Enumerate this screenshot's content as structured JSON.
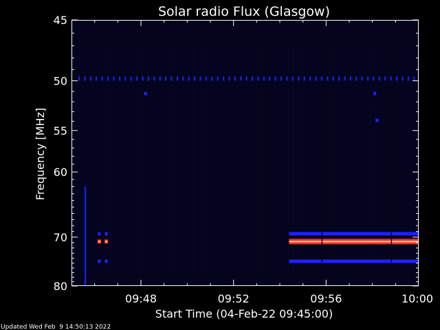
{
  "chart_data": {
    "type": "heatmap",
    "title": "Solar radio Flux (Glasgow)",
    "ylabel": "Frequency [MHz]",
    "xlabel": "Start Time (04-Feb-22 09:45:00)",
    "footer": "Updated Wed Feb  9 14:50:13 2022",
    "x_range_minutes": [
      45,
      60
    ],
    "y_range_mhz": [
      45,
      80
    ],
    "y_inverted": true,
    "grid": false,
    "y_ticks": [
      {
        "value": 45,
        "label": "45"
      },
      {
        "value": 50,
        "label": "50"
      },
      {
        "value": 55,
        "label": "55"
      },
      {
        "value": 60,
        "label": "60"
      },
      {
        "value": 70,
        "label": "70"
      },
      {
        "value": 80,
        "label": "80"
      }
    ],
    "x_ticks": [
      {
        "value": 48,
        "label": "09:48"
      },
      {
        "value": 52,
        "label": "09:52"
      },
      {
        "value": 56,
        "label": "09:56"
      },
      {
        "value": 60,
        "label": "10:00"
      }
    ],
    "colors": {
      "background": "#000000",
      "plot_background": "#04041e",
      "axis": "#ffffff",
      "low": "#0a0a80",
      "medium": "#2020ff",
      "high": "#ff3010",
      "peak": "#ffd8c0"
    },
    "features": [
      {
        "kind": "band",
        "freq_mhz": 49.8,
        "t_start_min": 45.3,
        "t_end_min": 60,
        "level": "medium",
        "dotted": true
      },
      {
        "kind": "band",
        "freq_mhz": 70.8,
        "t_start_min": 54.4,
        "t_end_min": 60,
        "level": "high"
      },
      {
        "kind": "band",
        "freq_mhz": 69.4,
        "t_start_min": 54.4,
        "t_end_min": 60,
        "level": "medium"
      },
      {
        "kind": "band",
        "freq_mhz": 74.6,
        "t_start_min": 54.4,
        "t_end_min": 60,
        "level": "medium"
      },
      {
        "kind": "spike",
        "t_min": 45.6,
        "f_start_mhz": 62,
        "f_end_mhz": 79.8,
        "level": "medium"
      },
      {
        "kind": "spot",
        "t_min": 46.2,
        "freq_mhz": 69.4,
        "level": "medium"
      },
      {
        "kind": "spot",
        "t_min": 46.5,
        "freq_mhz": 69.4,
        "level": "medium"
      },
      {
        "kind": "spot",
        "t_min": 46.2,
        "freq_mhz": 70.8,
        "level": "high"
      },
      {
        "kind": "spot",
        "t_min": 46.5,
        "freq_mhz": 70.8,
        "level": "high"
      },
      {
        "kind": "spot",
        "t_min": 46.2,
        "freq_mhz": 74.6,
        "level": "medium"
      },
      {
        "kind": "spot",
        "t_min": 46.5,
        "freq_mhz": 74.6,
        "level": "medium"
      },
      {
        "kind": "spot",
        "t_min": 48.2,
        "freq_mhz": 51.2,
        "level": "medium"
      },
      {
        "kind": "spot",
        "t_min": 58.1,
        "freq_mhz": 51.2,
        "level": "medium"
      },
      {
        "kind": "spot",
        "t_min": 58.2,
        "freq_mhz": 53.9,
        "level": "medium"
      }
    ]
  }
}
